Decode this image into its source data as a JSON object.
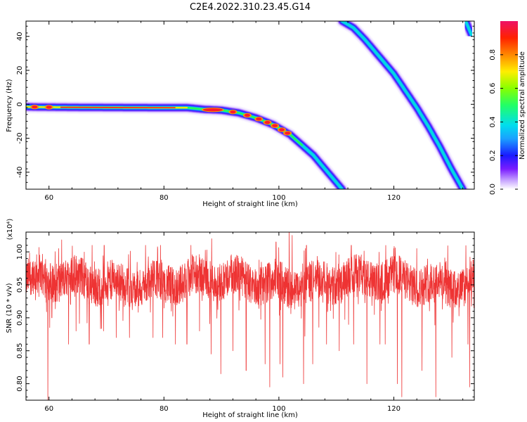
{
  "title": "C2E4.2022.310.23.45.G14",
  "chart_data": [
    {
      "type": "heatmap",
      "xlabel": "Height of straight line (km)",
      "ylabel": "Frequency (Hz)",
      "xlim": [
        56,
        134
      ],
      "ylim": [
        -50,
        49
      ],
      "xticks": [
        60,
        80,
        100,
        120
      ],
      "yticks": [
        -40,
        -20,
        0,
        20,
        40
      ],
      "grid": false,
      "colorbar": {
        "label": "Normalized spectral amplitude",
        "range": [
          0,
          1
        ],
        "ticks": [
          "0.0",
          "0.2",
          "0.4",
          "0.6",
          "0.8"
        ]
      },
      "traces": [
        {
          "points": [
            [
              56,
              -1.5
            ],
            [
              60,
              -1.7
            ],
            [
              70,
              -1.9
            ],
            [
              80,
              -2
            ],
            [
              84,
              -2
            ],
            [
              87,
              -3
            ],
            [
              90,
              -3.5
            ],
            [
              93,
              -5
            ],
            [
              96,
              -8
            ],
            [
              99,
              -12
            ],
            [
              102,
              -18
            ],
            [
              104,
              -24
            ],
            [
              106,
              -30
            ],
            [
              108,
              -38
            ],
            [
              110,
              -46
            ],
            [
              111,
              -50
            ]
          ],
          "peak_amplitude": 1.0
        },
        {
          "points": [
            [
              111,
              49
            ],
            [
              113,
              45
            ],
            [
              115,
              38
            ],
            [
              117,
              30
            ],
            [
              120,
              18
            ],
            [
              122,
              8
            ],
            [
              124,
              -2
            ],
            [
              126,
              -13
            ],
            [
              128,
              -25
            ],
            [
              130,
              -38
            ],
            [
              132,
              -50
            ]
          ],
          "peak_amplitude": 0.45
        },
        {
          "points": [
            [
              132.5,
              49
            ],
            [
              133.5,
              41
            ]
          ],
          "peak_amplitude": 0.35
        }
      ]
    },
    {
      "type": "line",
      "xlabel": "Height of straight line (km)",
      "ylabel": "SNR (10 * v/v)",
      "y_multiplier": "(x10⁴)",
      "xlim": [
        56,
        134
      ],
      "ylim": [
        0.775,
        1.03
      ],
      "xticks": [
        60,
        80,
        100,
        120
      ],
      "yticks": [
        "0.80",
        "0.85",
        "0.90",
        "0.95",
        "1.00"
      ],
      "grid": false,
      "series": [
        {
          "color": "#ee3333",
          "x_range": [
            56,
            134
          ],
          "baseline": 0.955,
          "noise_amplitude": 0.03,
          "dips": [
            [
              59.8,
              0.775
            ],
            [
              60.5,
              0.9
            ],
            [
              63.4,
              0.86
            ],
            [
              64.7,
              0.88
            ],
            [
              67.0,
              0.86
            ],
            [
              69.5,
              0.88
            ],
            [
              71.7,
              0.87
            ],
            [
              74.0,
              0.87
            ],
            [
              78.1,
              0.87
            ],
            [
              79.8,
              0.87
            ],
            [
              82.0,
              0.86
            ],
            [
              84.0,
              0.86
            ],
            [
              86.2,
              0.88
            ],
            [
              88.2,
              0.845
            ],
            [
              89.9,
              0.815
            ],
            [
              92.0,
              0.85
            ],
            [
              94.3,
              0.82
            ],
            [
              97.6,
              0.83
            ],
            [
              98.4,
              0.795
            ],
            [
              100.2,
              0.83
            ],
            [
              100.7,
              0.81
            ],
            [
              104.3,
              0.8
            ],
            [
              105.9,
              0.83
            ],
            [
              108.3,
              0.86
            ],
            [
              110.5,
              0.85
            ],
            [
              113.0,
              0.86
            ],
            [
              115.3,
              0.8
            ],
            [
              117.6,
              0.86
            ],
            [
              118.5,
              0.86
            ],
            [
              120.6,
              0.8
            ],
            [
              121.4,
              0.78
            ],
            [
              124.9,
              0.82
            ],
            [
              127.3,
              0.78
            ],
            [
              130.1,
              0.84
            ],
            [
              132.9,
              0.86
            ],
            [
              133.2,
              0.795
            ]
          ],
          "peaks": [
            [
              61.7,
              1.005
            ],
            [
              67.5,
              1.01
            ],
            [
              69.6,
              1.01
            ],
            [
              76.8,
              1.01
            ],
            [
              79.4,
              1.01
            ],
            [
              84.7,
              1.01
            ],
            [
              88.3,
              1.02
            ],
            [
              99.5,
              1.015
            ],
            [
              101.8,
              1.035
            ],
            [
              102.3,
              1.025
            ],
            [
              104.8,
              1.01
            ],
            [
              112.6,
              1.01
            ],
            [
              120.0,
              1.005
            ],
            [
              124.0,
              1.005
            ]
          ]
        }
      ]
    }
  ]
}
